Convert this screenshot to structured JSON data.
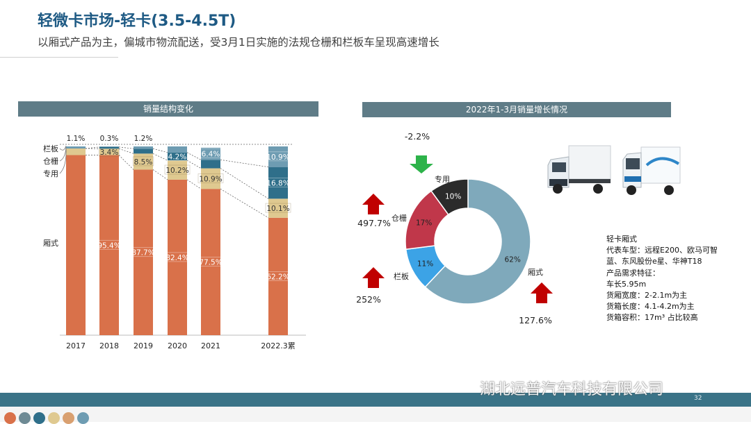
{
  "header": {
    "title": "轻微卡市场-轻卡(3.5-4.5T)",
    "subtitle": "以厢式产品为主，偏城市物流配送，受3月1日实施的法规仓栅和栏板车呈现高速增长"
  },
  "chart_data": [
    {
      "type": "bar",
      "stacked": true,
      "title": "销量结构变化",
      "categories": [
        "2017",
        "2018",
        "2019",
        "2020",
        "2021",
        "2022.3累"
      ],
      "series": [
        {
          "name": "厢式",
          "values": [
            95.4,
            95.4,
            87.7,
            82.4,
            77.5,
            62.2
          ],
          "color": "#d9714a"
        },
        {
          "name": "专用",
          "values": [
            3.5,
            3.4,
            8.5,
            10.2,
            10.9,
            10.1
          ],
          "color": "#dfc990"
        },
        {
          "name": "仓栅",
          "values": [
            0.0,
            0.9,
            2.6,
            4.2,
            4.5,
            16.8
          ],
          "color": "#2f6f8a"
        },
        {
          "name": "栏板",
          "values": [
            1.1,
            0.3,
            1.2,
            3.2,
            6.4,
            10.9
          ],
          "color": "#6e9cb2"
        }
      ],
      "bar_labels": {
        "厢式": [
          "",
          "95.4%",
          "87.7%",
          "82.4%",
          "77.5%",
          "62.2%"
        ],
        "专用": [
          "",
          "3.4%",
          "8.5%",
          "10.2%",
          "10.9%",
          "10.1%"
        ],
        "仓栅": [
          "",
          "",
          "",
          "4.2%",
          "",
          "16.8%"
        ],
        "栏板": [
          "",
          "",
          "",
          "",
          "6.4%",
          "10.9%"
        ],
        "top": [
          "1.1%",
          "0.3%",
          "1.2%",
          "",
          "",
          ""
        ]
      },
      "ylim": [
        0,
        100
      ],
      "legend_side_labels": [
        "栏板",
        "仓栅",
        "专用",
        "厢式"
      ]
    },
    {
      "type": "pie",
      "donut": true,
      "title": "2022年1-3月销量增长情况",
      "slices": [
        {
          "name": "厢式",
          "value": 62,
          "label": "62%",
          "color": "#7fa9bb",
          "growth": "127.6%",
          "direction": "up"
        },
        {
          "name": "栏板",
          "value": 11,
          "label": "11%",
          "color": "#3ca3e6",
          "growth": "252%",
          "direction": "up"
        },
        {
          "name": "仓栅",
          "value": 17,
          "label": "17%",
          "color": "#c0374a",
          "growth": "497.7%",
          "direction": "up"
        },
        {
          "name": "专用",
          "value": 10,
          "label": "10%",
          "color": "#2b2b2b",
          "growth": "-2.2%",
          "direction": "down"
        }
      ]
    }
  ],
  "specs": {
    "lines": [
      "轻卡厢式",
      "代表车型：远程E200、欧马可智",
      "蓝、东风股份e星、华神T18",
      "产品需求特征：",
      "车长5.95m",
      "货厢宽度：2-2.1m为主",
      "货箱长度：4.1-4.2m为主",
      "货箱容积：17m³ 占比较高"
    ]
  },
  "footer": {
    "page_number": "32",
    "watermark": "湖北远普汽车科技有限公司",
    "dot_colors": [
      "#d9714a",
      "#6e8a94",
      "#2f6f8a",
      "#dfc990",
      "#d9a070",
      "#6e9cb2"
    ]
  },
  "colors": {
    "up_arrow": "#c00000",
    "down_arrow": "#2db34a",
    "title": "#1e5a84"
  }
}
